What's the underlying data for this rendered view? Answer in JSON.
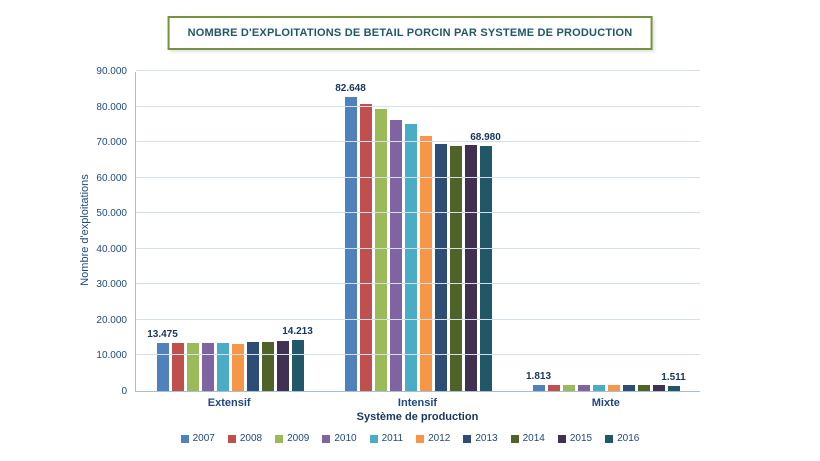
{
  "chart_data": {
    "type": "bar",
    "title": "NOMBRE D'EXPLOITATIONS DE BETAIL PORCIN PAR SYSTEME DE PRODUCTION",
    "xlabel": "Système de production",
    "ylabel": "Nombre d'exploitations",
    "ylim": [
      0,
      90000
    ],
    "ytick_step": 10000,
    "ytick_labels": [
      "0",
      "10.000",
      "20.000",
      "30.000",
      "40.000",
      "50.000",
      "60.000",
      "70.000",
      "80.000",
      "90.000"
    ],
    "categories": [
      "Extensif",
      "Intensif",
      "Mixte"
    ],
    "grid": true,
    "legend_position": "bottom",
    "series": [
      {
        "name": "2007",
        "color": "#4F81BD",
        "values": [
          13475,
          82648,
          1813
        ],
        "value_labels": [
          "13.475",
          "82.648",
          "1.813"
        ]
      },
      {
        "name": "2008",
        "color": "#C0504D",
        "values": [
          13450,
          80600,
          1740
        ],
        "value_labels": [
          null,
          null,
          null
        ]
      },
      {
        "name": "2009",
        "color": "#9BBB59",
        "values": [
          13550,
          79400,
          1760
        ],
        "value_labels": [
          null,
          null,
          null
        ]
      },
      {
        "name": "2010",
        "color": "#8064A2",
        "values": [
          13600,
          76200,
          1770
        ],
        "value_labels": [
          null,
          null,
          null
        ]
      },
      {
        "name": "2011",
        "color": "#4BACC6",
        "values": [
          13500,
          75100,
          1780
        ],
        "value_labels": [
          null,
          null,
          null
        ]
      },
      {
        "name": "2012",
        "color": "#F79646",
        "values": [
          13350,
          71700,
          1650
        ],
        "value_labels": [
          null,
          null,
          null
        ]
      },
      {
        "name": "2013",
        "color": "#2C4D75",
        "values": [
          13700,
          69500,
          1700
        ],
        "value_labels": [
          null,
          null,
          null
        ]
      },
      {
        "name": "2014",
        "color": "#4F6228",
        "values": [
          13800,
          69000,
          1720
        ],
        "value_labels": [
          null,
          null,
          null
        ]
      },
      {
        "name": "2015",
        "color": "#403152",
        "values": [
          14100,
          69300,
          1620
        ],
        "value_labels": [
          null,
          null,
          null
        ]
      },
      {
        "name": "2016",
        "color": "#205867",
        "values": [
          14213,
          68980,
          1511
        ],
        "value_labels": [
          "14.213",
          "68.980",
          "1.511"
        ]
      }
    ]
  }
}
